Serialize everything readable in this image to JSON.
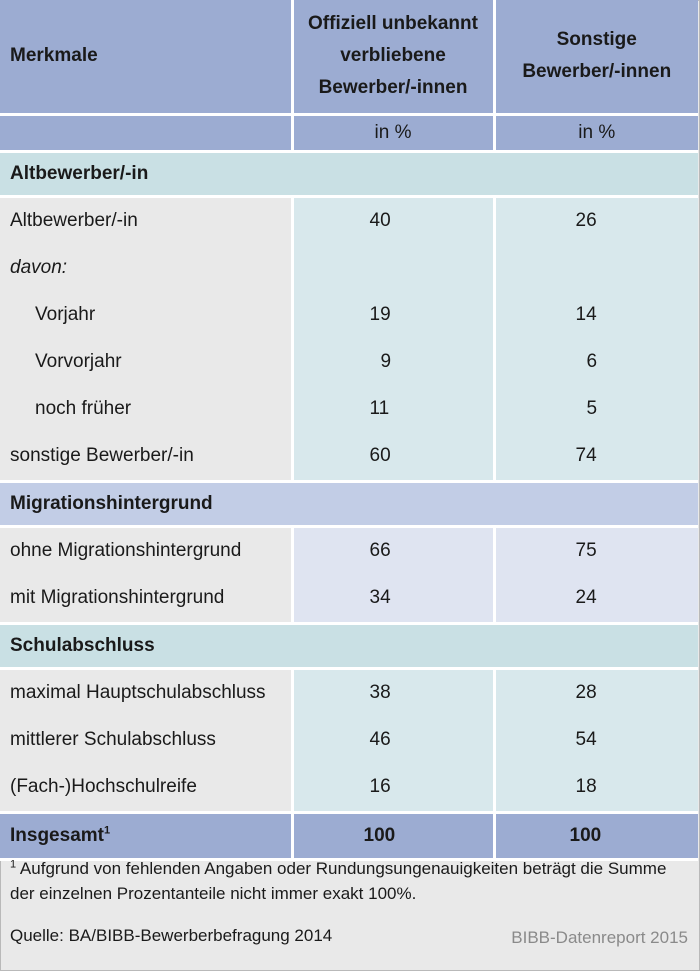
{
  "header": {
    "col1": "Merkmale",
    "col2_lines": [
      "Offiziell unbekannt",
      "verbliebene",
      "Bewerber/-innen"
    ],
    "col3_lines": [
      "Sonstige",
      "Bewerber/-innen"
    ],
    "unit": "in %"
  },
  "sections": [
    {
      "title": "Altbewerber/-in",
      "rows": [
        {
          "label": "Altbewerber/-in",
          "v1": "40",
          "v2": "26"
        },
        {
          "label": "davon:",
          "v1": "",
          "v2": ""
        },
        {
          "label": "Vorjahr",
          "v1": "19",
          "v2": "14"
        },
        {
          "label": "Vorvorjahr",
          "v1": "9",
          "v2": "6"
        },
        {
          "label": "noch früher",
          "v1": "11",
          "v2": "5"
        },
        {
          "label": "sonstige Bewerber/-in",
          "v1": "60",
          "v2": "74"
        }
      ]
    },
    {
      "title": "Migrationshintergrund",
      "rows": [
        {
          "label": "ohne Migrationshintergrund",
          "v1": "66",
          "v2": "75"
        },
        {
          "label": "mit Migrationshintergrund",
          "v1": "34",
          "v2": "24"
        }
      ]
    },
    {
      "title": "Schulabschluss",
      "rows": [
        {
          "label": "maximal Hauptschulabschluss",
          "v1": "38",
          "v2": "28"
        },
        {
          "label": "mittlerer Schulabschluss",
          "v1": "46",
          "v2": "54"
        },
        {
          "label": "(Fach-)Hochschulreife",
          "v1": "16",
          "v2": "18"
        }
      ]
    }
  ],
  "total": {
    "label": "Insgesamt",
    "footnote_mark": "1",
    "v1": "100",
    "v2": "100"
  },
  "footnote": {
    "mark": "1",
    "text": "Aufgrund von fehlenden Angaben oder Rundungsungenauigkeiten beträgt die Summe der einzelnen Prozentanteile nicht immer exakt 100%."
  },
  "source": "Quelle: BA/BIBB-Bewerberbefragung 2014",
  "report": "BIBB-Datenreport 2015",
  "colors": {
    "header_bg": "#9cacd2",
    "section_teal": "#c9e0e4",
    "section_blue": "#c2cde6",
    "body_teal": "#d8e8ec",
    "body_blue": "#dfe4f1"
  }
}
